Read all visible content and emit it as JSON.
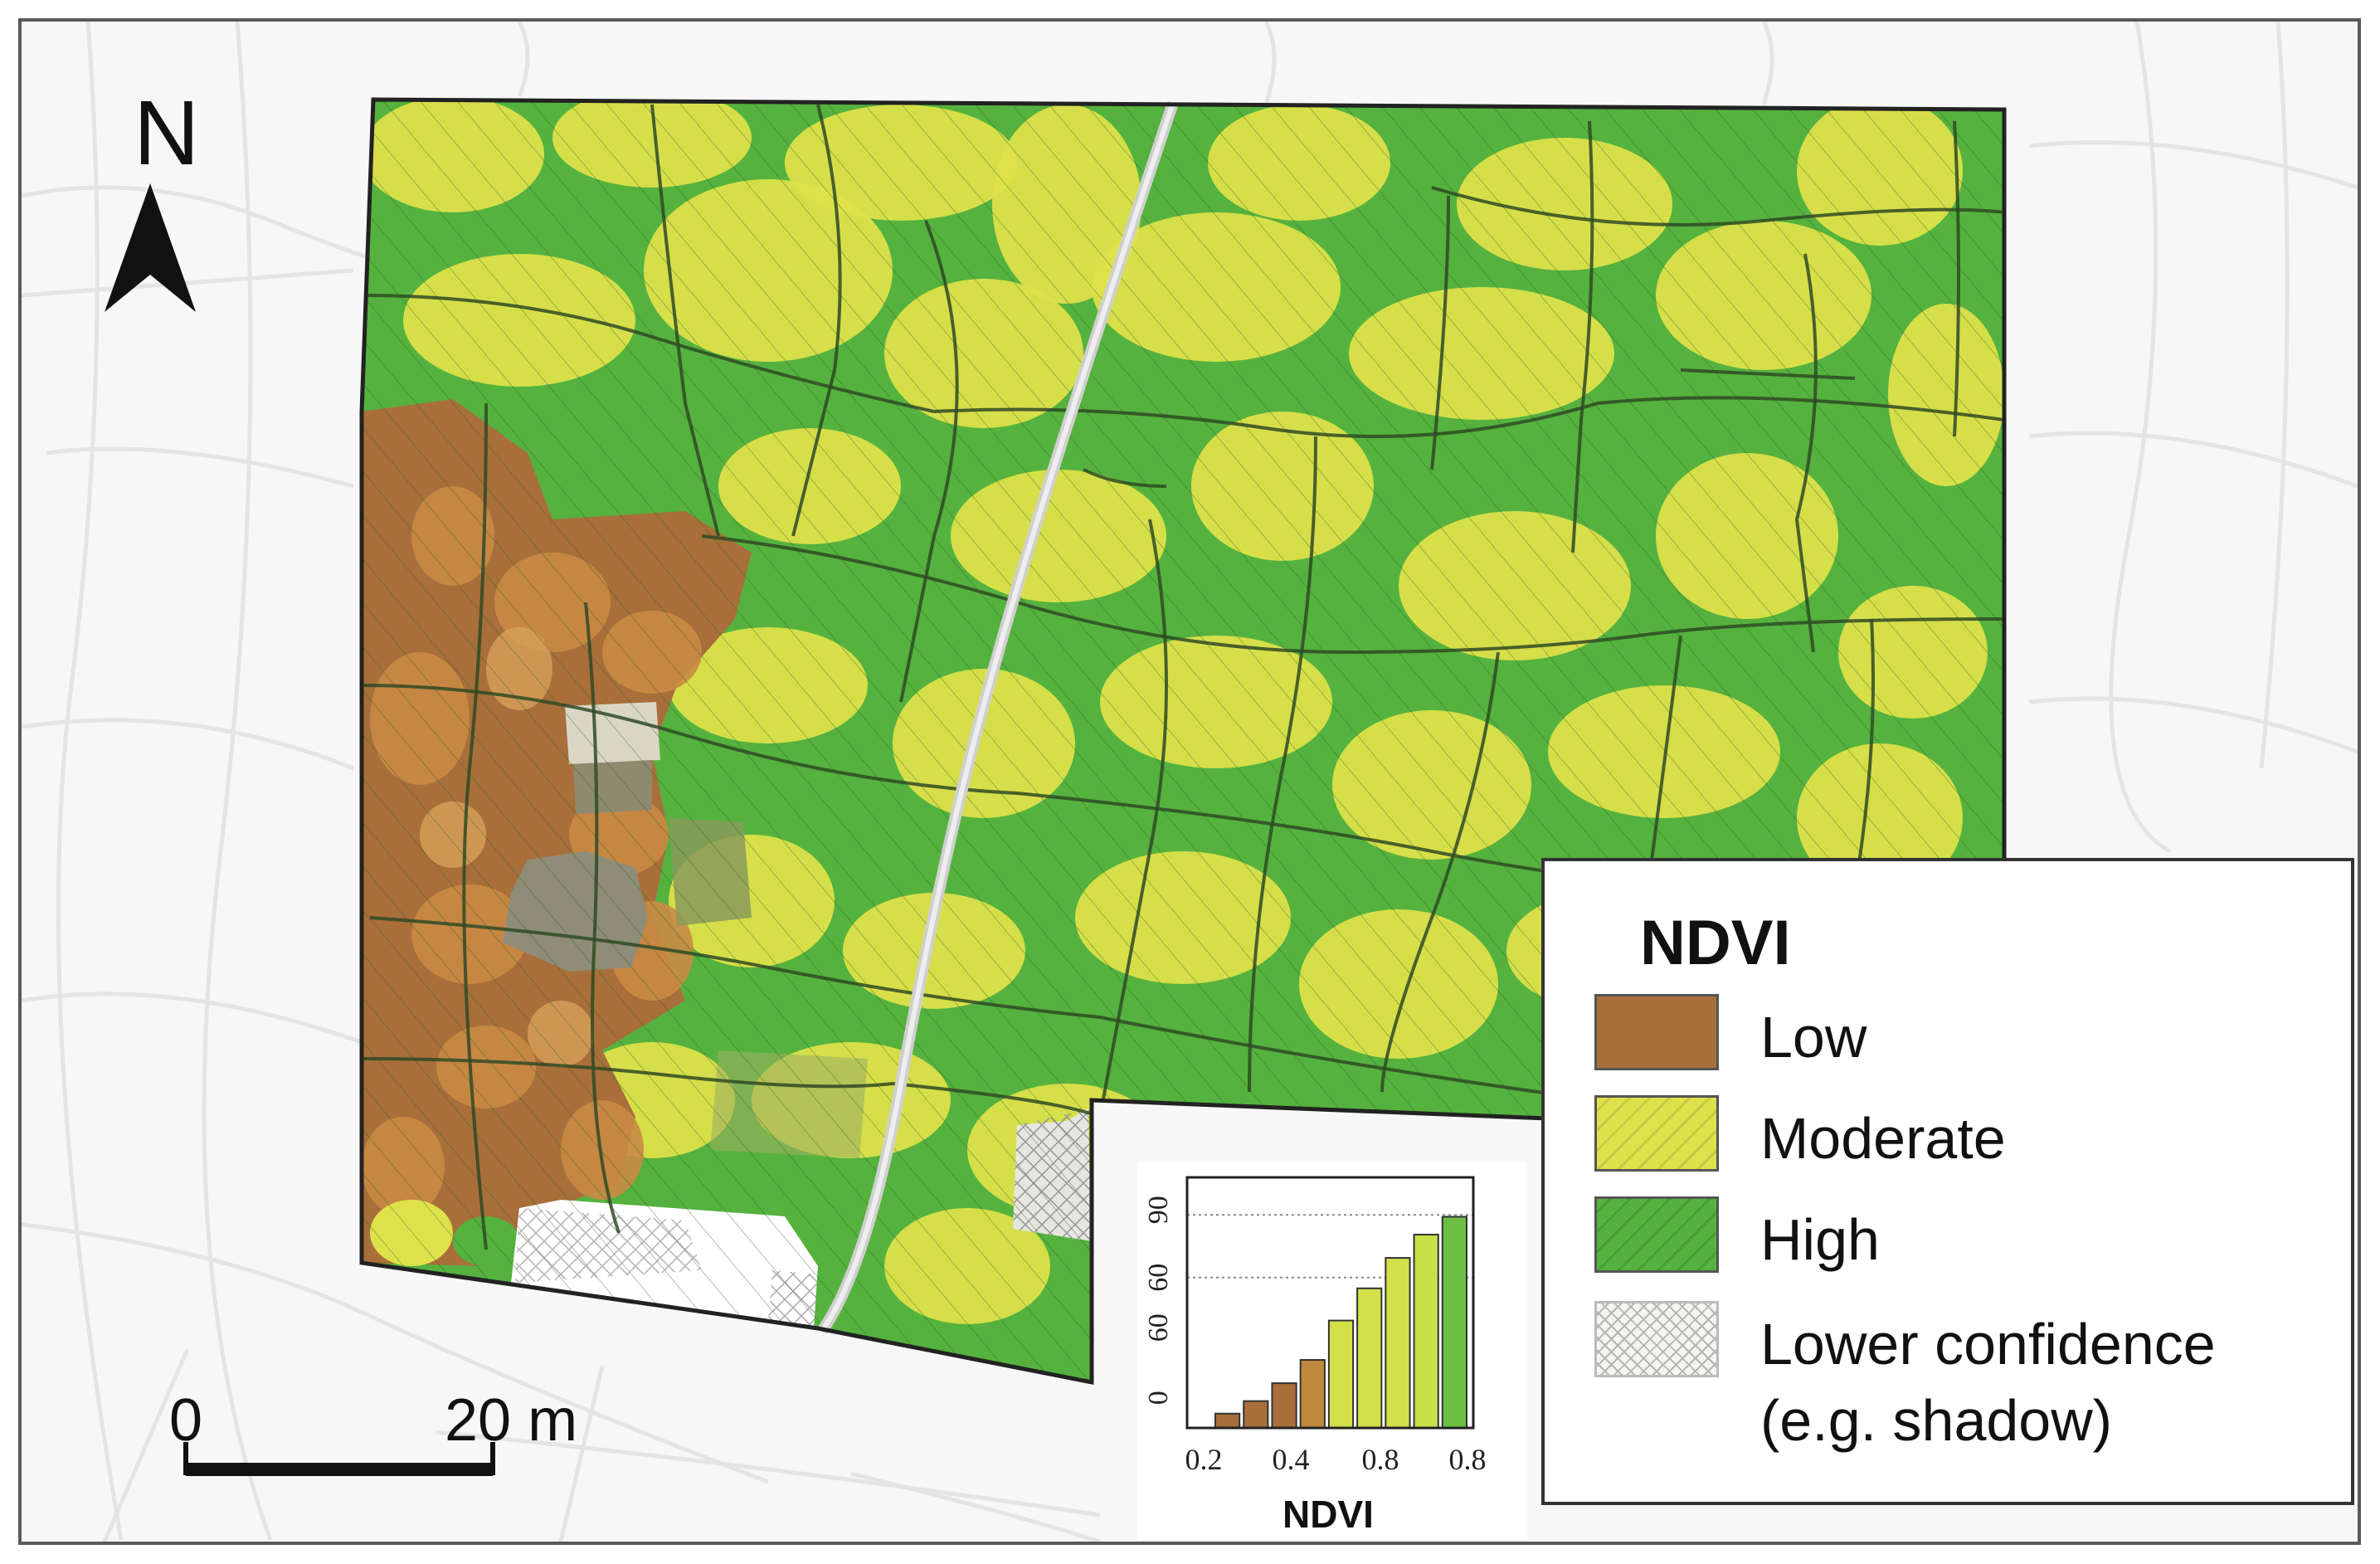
{
  "map": {
    "north_arrow": {
      "label": "N",
      "icon": "north-arrow-icon"
    },
    "scale_bar": {
      "start_label": "0",
      "end_label": "20 m"
    },
    "colors": {
      "low": "#a86f3a",
      "moderate": "#dde24a",
      "high": "#55b23e",
      "lower_confidence": "#e6e6e0",
      "path": "#d8d8d8"
    }
  },
  "legend": {
    "title": "NDVI",
    "items": [
      {
        "label": "Low",
        "color": "#a86f3a"
      },
      {
        "label": "Moderate",
        "color": "#dde24a"
      },
      {
        "label": "High",
        "color": "#55b23e"
      },
      {
        "label": "Lower confidence",
        "label2": "(e.g. shadow)",
        "color": "#e6e6e0"
      }
    ]
  },
  "chart_data": {
    "type": "bar",
    "xlabel": "NDVI",
    "x_tick_labels": [
      "0.2",
      "0.4",
      "0.8",
      "0.8"
    ],
    "y_tick_labels": [
      "0",
      "60",
      "60",
      "90"
    ],
    "values": [
      8,
      15,
      25,
      38,
      60,
      78,
      95,
      108,
      118
    ],
    "bar_colors": [
      "#a86f3a",
      "#a86f3a",
      "#a86f3a",
      "#c0893d",
      "#d4e04a",
      "#d4e04a",
      "#d4e04a",
      "#c8e04a",
      "#6cbf43"
    ],
    "ylim": [
      0,
      140
    ],
    "grid": "horizontal dotted at upper two y ticks"
  }
}
